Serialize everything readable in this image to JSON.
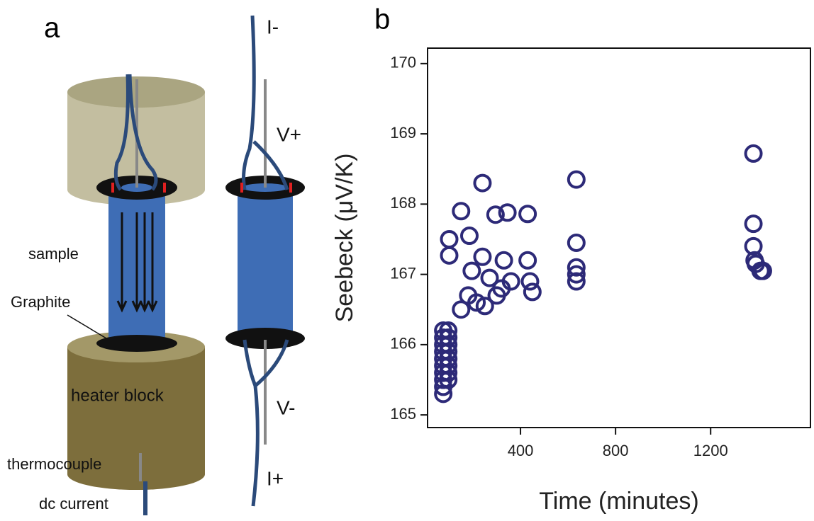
{
  "diagram": {
    "panel_label": "a",
    "labels": {
      "i_minus": "I-",
      "v_plus": "V+",
      "v_minus": "V-",
      "i_plus": "I+",
      "sample": "sample",
      "graphite": "Graphite",
      "heater": "heater block",
      "thermocouple": "thermocouple",
      "dc": "dc current"
    }
  },
  "chart_data": {
    "type": "scatter",
    "panel_label": "b",
    "x_label": "Time (minutes)",
    "y_label": "Seebeck (μV/K)",
    "color": "#2d2a78",
    "x": [
      75,
      75,
      75,
      75,
      75,
      75,
      75,
      75,
      75,
      75,
      96,
      96,
      96,
      96,
      96,
      96,
      96,
      96,
      100,
      100,
      150,
      150,
      180,
      185,
      195,
      215,
      240,
      240,
      250,
      270,
      300,
      295,
      330,
      345,
      320,
      360,
      430,
      430,
      440,
      450,
      635,
      635,
      635,
      635,
      635,
      1380,
      1380,
      1380,
      1385,
      1390,
      1410,
      1420
    ],
    "values": [
      165.3,
      165.4,
      165.5,
      165.6,
      165.7,
      165.8,
      165.9,
      166.0,
      166.1,
      166.2,
      165.5,
      165.6,
      165.7,
      165.8,
      165.9,
      166.0,
      166.1,
      166.2,
      167.5,
      167.27,
      167.9,
      166.5,
      166.7,
      167.55,
      167.05,
      166.6,
      167.25,
      168.3,
      166.55,
      166.95,
      166.7,
      167.85,
      167.2,
      167.88,
      166.8,
      166.9,
      167.86,
      167.2,
      166.9,
      166.75,
      168.35,
      167.45,
      167.1,
      167.0,
      166.9,
      168.72,
      167.72,
      167.4,
      167.2,
      167.15,
      167.05,
      167.05
    ],
    "xlim": [
      9,
      1620
    ],
    "ylim": [
      164.82,
      170.22
    ],
    "xticks": [
      400,
      800,
      1200
    ],
    "yticks": [
      165,
      166,
      167,
      168,
      169,
      170
    ]
  }
}
